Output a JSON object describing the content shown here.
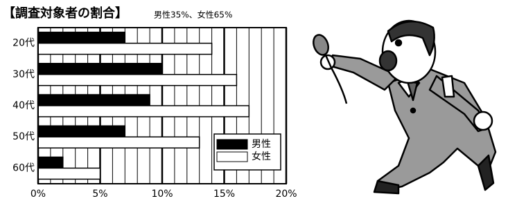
{
  "chart_data": {
    "type": "bar",
    "orientation": "horizontal",
    "title": "【調査対象者の割合】",
    "subtitle": "男性35%、女性65%",
    "categories": [
      "20代",
      "30代",
      "40代",
      "50代",
      "60代"
    ],
    "series": [
      {
        "name": "男性",
        "color": "#000000",
        "values": [
          7,
          10,
          9,
          7,
          2
        ]
      },
      {
        "name": "女性",
        "color": "#ffffff",
        "values": [
          14,
          16,
          17,
          13,
          5
        ]
      }
    ],
    "xlim": [
      0,
      20
    ],
    "xticks": [
      {
        "value": 0,
        "label": "0%"
      },
      {
        "value": 5,
        "label": "5%"
      },
      {
        "value": 10,
        "label": "10%"
      },
      {
        "value": 15,
        "label": "15%"
      },
      {
        "value": 20,
        "label": "20%"
      }
    ],
    "xminorticks": [
      1,
      2,
      3,
      4,
      6,
      7,
      8,
      9,
      11,
      12,
      13,
      14,
      16,
      17,
      18,
      19
    ],
    "grid": true,
    "legend": "lower right"
  }
}
